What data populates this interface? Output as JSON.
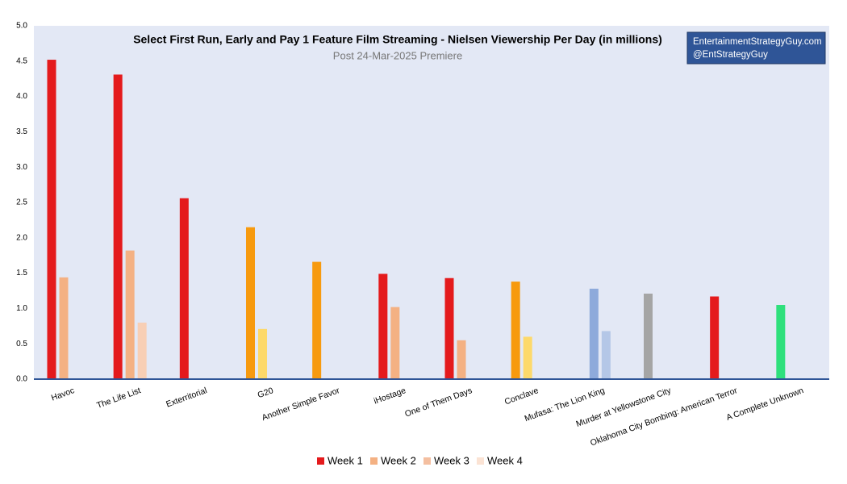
{
  "chart_data": {
    "type": "bar",
    "title": "Select First Run, Early and Pay 1 Feature Film Streaming - Nielsen Viewership Per Day (in millions)",
    "subtitle": "Post 24-Mar-2025 Premiere",
    "watermark": [
      "EntertainmentStrategyGuy.com",
      "@EntStrategyGuy"
    ],
    "categories": [
      "Havoc",
      "The Life List",
      "Exterritorial",
      "G20",
      "Another Simple Favor",
      "iHostage",
      "One of Them Days",
      "Conclave",
      "Mufasa: The Lion King",
      "Murder at Yellowstone City",
      "Oklahoma City Bombing: American Terror",
      "A Complete Unknown"
    ],
    "series": [
      {
        "name": "Week 1",
        "color": "#e41a1c",
        "values": [
          4.52,
          4.31,
          2.56,
          2.15,
          1.66,
          1.49,
          1.43,
          1.38,
          null,
          1.21,
          1.17,
          1.05
        ],
        "colors": [
          "#e41a1c",
          "#e41a1c",
          "#e41a1c",
          "#f79a0e",
          "#f79a0e",
          "#e41a1c",
          "#e41a1c",
          "#f79a0e",
          null,
          "#a5a5a5",
          "#e41a1c",
          "#2ee07c"
        ]
      },
      {
        "name": "Week 2",
        "color": "#f4b183",
        "values": [
          1.44,
          1.82,
          null,
          0.71,
          null,
          1.02,
          0.55,
          0.6,
          1.28,
          null,
          null,
          null
        ],
        "colors": [
          "#f4b183",
          "#f4b183",
          null,
          "#fdd96a",
          null,
          "#f4b183",
          "#f4b183",
          "#fdd96a",
          "#8eaadb",
          null,
          null,
          null
        ]
      },
      {
        "name": "Week 3",
        "color": "#f4bfa0",
        "values": [
          null,
          0.8,
          null,
          null,
          null,
          null,
          null,
          null,
          0.68,
          null,
          null,
          null
        ],
        "colors": [
          null,
          "#f8cfb5",
          null,
          null,
          null,
          null,
          null,
          null,
          "#b4c7e7",
          null,
          null,
          null
        ]
      },
      {
        "name": "Week 4",
        "color": "#fbe3d4",
        "values": [
          null,
          null,
          null,
          null,
          null,
          null,
          null,
          null,
          null,
          null,
          null,
          null
        ],
        "colors": [
          null,
          null,
          null,
          null,
          null,
          null,
          null,
          null,
          null,
          null,
          null,
          null
        ]
      }
    ],
    "ylim": [
      0,
      5
    ],
    "yticks": [
      {
        "value": 0,
        "label": "0.0"
      },
      {
        "value": 0.5,
        "label": "0.5"
      },
      {
        "value": 1,
        "label": "1.0"
      },
      {
        "value": 1.5,
        "label": "1.5"
      },
      {
        "value": 2,
        "label": "2.0"
      },
      {
        "value": 2.5,
        "label": "2.5"
      },
      {
        "value": 3,
        "label": "3.0"
      },
      {
        "value": 3.5,
        "label": "3.5"
      },
      {
        "value": 4,
        "label": "4.0"
      },
      {
        "value": 4.5,
        "label": "4.5"
      },
      {
        "value": 5,
        "label": "5.0"
      }
    ],
    "legend": "bottom"
  }
}
